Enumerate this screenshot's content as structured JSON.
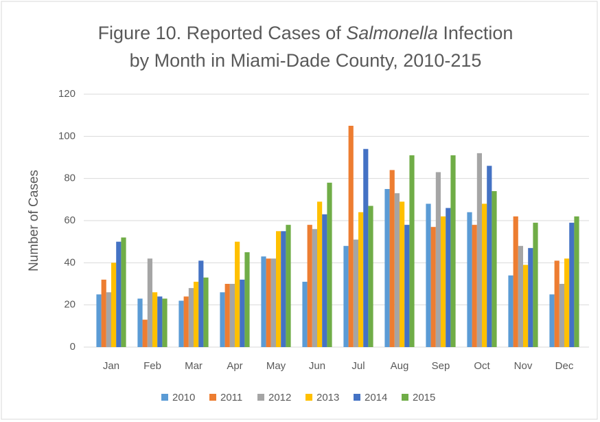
{
  "chart_data": {
    "type": "bar",
    "title": [
      "Figure 10. Reported Cases of ",
      "Salmonella",
      " Infection",
      "by Month in Miami-Dade County, 2010-215"
    ],
    "y_label": "Number of Cases",
    "categories": [
      "Jan",
      "Feb",
      "Mar",
      "Apr",
      "May",
      "Jun",
      "Jul",
      "Aug",
      "Sep",
      "Oct",
      "Nov",
      "Dec"
    ],
    "series": [
      {
        "name": "2010",
        "color": "#5b9bd5",
        "values": [
          25,
          23,
          22,
          26,
          43,
          31,
          48,
          75,
          68,
          64,
          34,
          25
        ]
      },
      {
        "name": "2011",
        "color": "#ed7d31",
        "values": [
          32,
          13,
          24,
          30,
          42,
          58,
          105,
          84,
          57,
          58,
          62,
          41
        ]
      },
      {
        "name": "2012",
        "color": "#a5a5a5",
        "values": [
          26,
          42,
          28,
          30,
          42,
          56,
          51,
          73,
          83,
          92,
          48,
          30
        ]
      },
      {
        "name": "2013",
        "color": "#ffc000",
        "values": [
          40,
          26,
          31,
          50,
          55,
          69,
          64,
          69,
          62,
          68,
          39,
          42
        ]
      },
      {
        "name": "2014",
        "color": "#4472c4",
        "values": [
          50,
          24,
          41,
          32,
          55,
          63,
          94,
          58,
          66,
          86,
          47,
          59
        ]
      },
      {
        "name": "2015",
        "color": "#70ad47",
        "values": [
          52,
          23,
          33,
          45,
          58,
          78,
          67,
          91,
          91,
          74,
          59,
          62
        ]
      }
    ],
    "ylim": [
      0,
      120
    ],
    "yticks": [
      0,
      20,
      40,
      60,
      80,
      100,
      120
    ],
    "grid": true,
    "legend": "bottom"
  }
}
